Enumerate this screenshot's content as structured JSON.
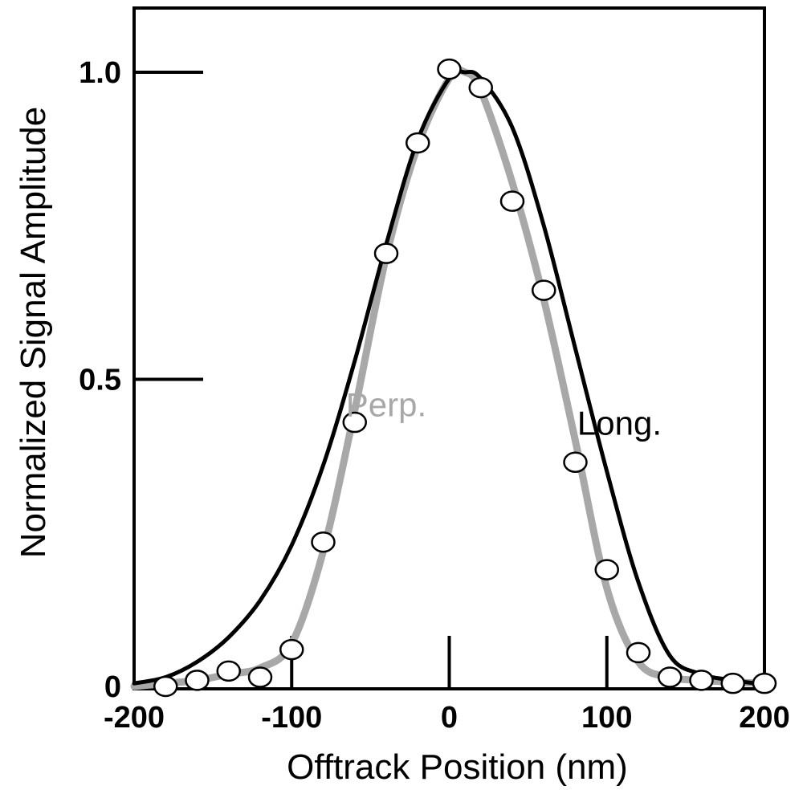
{
  "chart_data": {
    "type": "line",
    "title": "",
    "xlabel": "Offtrack Position (nm)",
    "ylabel": "Normalized Signal Amplitude",
    "xlim": [
      -200,
      200
    ],
    "ylim": [
      0,
      1.0
    ],
    "x_ticks": [
      -200,
      -100,
      0,
      100,
      200
    ],
    "x_tick_labels": [
      "-200",
      "-100",
      "0",
      "100",
      "200"
    ],
    "y_ticks": [
      0,
      0.5,
      1.0
    ],
    "y_tick_labels": [
      "0",
      "0.5",
      "1.0"
    ],
    "grid": false,
    "legend": "none",
    "series": [
      {
        "name": "Long.",
        "kind": "line",
        "color": "#000000",
        "x": [
          -200,
          -180,
          -160,
          -140,
          -120,
          -100,
          -80,
          -60,
          -40,
          -20,
          0,
          10,
          20,
          40,
          60,
          80,
          100,
          120,
          140,
          160,
          180,
          200
        ],
        "y": [
          0.005,
          0.015,
          0.04,
          0.08,
          0.14,
          0.23,
          0.36,
          0.53,
          0.72,
          0.89,
          0.99,
          1.0,
          0.99,
          0.91,
          0.75,
          0.55,
          0.35,
          0.17,
          0.05,
          0.02,
          0.01,
          0.003
        ]
      },
      {
        "name": "Perp.",
        "kind": "line",
        "color": "#a8a8a8",
        "x": [
          -200,
          -180,
          -160,
          -140,
          -120,
          -100,
          -80,
          -60,
          -40,
          -20,
          0,
          10,
          20,
          40,
          60,
          80,
          100,
          120,
          140,
          160,
          180,
          200
        ],
        "y": [
          0.0,
          0.005,
          0.01,
          0.02,
          0.03,
          0.07,
          0.22,
          0.45,
          0.7,
          0.88,
          0.99,
          1.0,
          0.97,
          0.82,
          0.63,
          0.4,
          0.16,
          0.04,
          0.015,
          0.01,
          0.007,
          0.005
        ]
      },
      {
        "name": "",
        "kind": "scatter",
        "color": "#000000",
        "x": [
          -180,
          -160,
          -140,
          -120,
          -100,
          -80,
          -60,
          -40,
          -20,
          0,
          20,
          40,
          60,
          80,
          100,
          120,
          140,
          160,
          180,
          200
        ],
        "y": [
          0.0,
          0.01,
          0.025,
          0.015,
          0.06,
          0.235,
          0.43,
          0.705,
          0.885,
          1.005,
          0.975,
          0.79,
          0.645,
          0.365,
          0.19,
          0.055,
          0.015,
          0.01,
          0.005,
          0.005
        ]
      }
    ],
    "annotations": [
      {
        "text": "Perp.",
        "x": -40,
        "y": 0.44,
        "color": "#a8a8a8"
      },
      {
        "text": "Long.",
        "x": 108,
        "y": 0.41,
        "color": "#000000"
      }
    ]
  }
}
